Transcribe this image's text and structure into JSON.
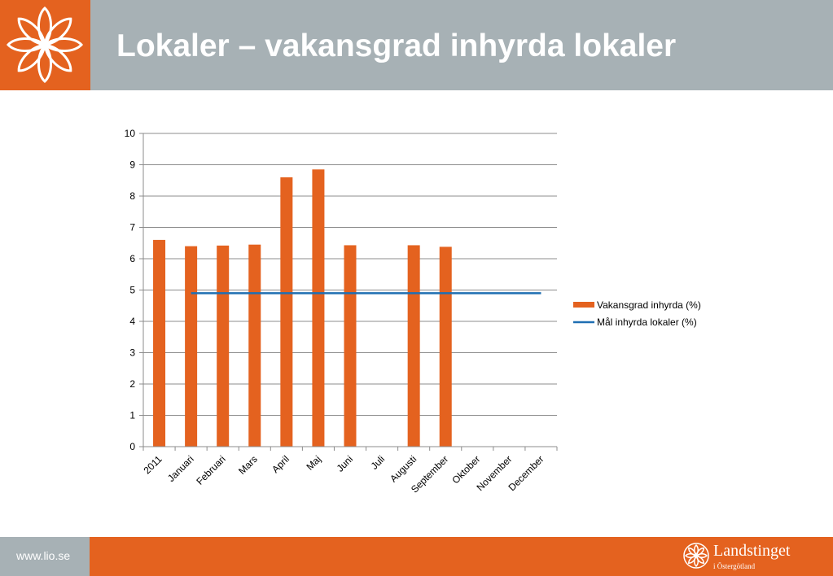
{
  "slide": {
    "title": "Lokaler – vakansgrad inhyrda lokaler",
    "footer_url": "www.lio.se",
    "brand_name": "Landstinget",
    "brand_sub": "i Östergötland"
  },
  "colors": {
    "accent": "#e4621f",
    "header_gray": "#a7b1b5",
    "bar": "#e4621f",
    "target_line": "#1f6fb2"
  },
  "chart_data": {
    "type": "bar",
    "categories": [
      "2011",
      "Januari",
      "Februari",
      "Mars",
      "April",
      "Maj",
      "Juni",
      "Juli",
      "Augusti",
      "September",
      "Oktober",
      "November",
      "December"
    ],
    "series": [
      {
        "name": "Vakansgrad inhyrda (%)",
        "type": "bar",
        "values": [
          6.6,
          6.4,
          6.42,
          6.45,
          8.6,
          8.85,
          6.43,
          null,
          6.43,
          6.38,
          null,
          null,
          null
        ]
      },
      {
        "name": "Mål inhyrda lokaler (%)",
        "type": "line",
        "values": [
          null,
          4.9,
          4.9,
          4.9,
          4.9,
          4.9,
          4.9,
          4.9,
          4.9,
          4.9,
          4.9,
          4.9,
          4.9
        ]
      }
    ],
    "ylim": [
      0,
      10
    ],
    "yticks": [
      0,
      1,
      2,
      3,
      4,
      5,
      6,
      7,
      8,
      9,
      10
    ],
    "grid": true,
    "legend": "right"
  }
}
